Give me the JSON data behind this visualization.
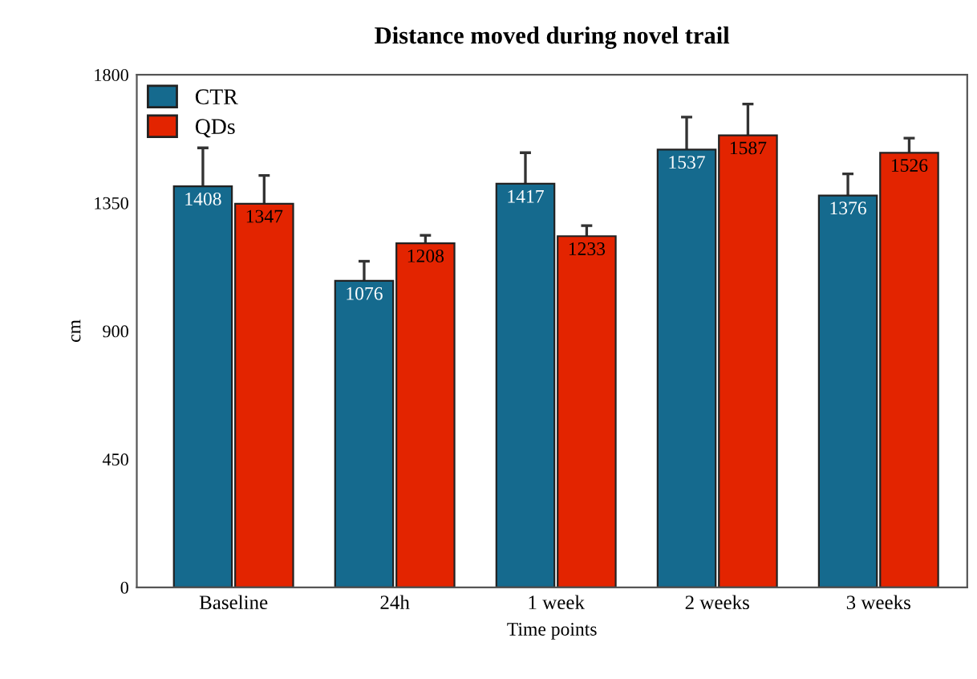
{
  "chart_data": {
    "type": "bar",
    "title": "Distance moved during novel trail",
    "xlabel": "Time points",
    "ylabel": "cm",
    "categories": [
      "Baseline",
      "24h",
      "1 week",
      "2 weeks",
      "3 weeks"
    ],
    "series": [
      {
        "name": "CTR",
        "color": "#156a8e",
        "values": [
          1408,
          1076,
          1417,
          1537,
          1376
        ],
        "errors": [
          135,
          69,
          109,
          114,
          76
        ]
      },
      {
        "name": "QDs",
        "color": "#e32400",
        "values": [
          1347,
          1208,
          1233,
          1587,
          1526
        ],
        "errors": [
          99,
          28,
          37,
          110,
          51
        ]
      }
    ],
    "ylim": [
      0,
      1800
    ],
    "yticks": [
      0,
      450,
      900,
      1350,
      1800
    ],
    "data_labels": true,
    "legend": "top left",
    "grid": false
  }
}
